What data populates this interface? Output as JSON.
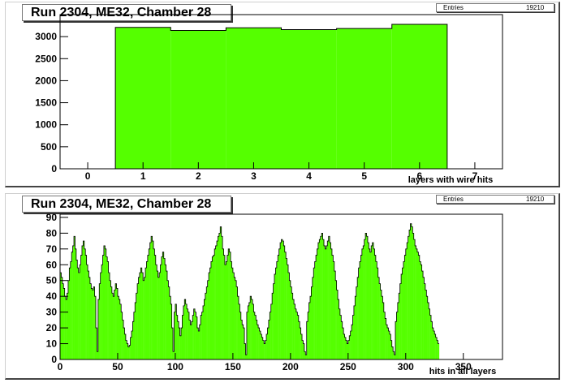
{
  "chart_data": [
    {
      "type": "bar",
      "title": "Run 2304, ME32, Chamber 28",
      "xlabel": "layers with wire hits",
      "ylabel": "",
      "stats": {
        "label": "Entries",
        "value": "19210"
      },
      "xlim": [
        -0.5,
        7.5
      ],
      "ylim": [
        0,
        3500
      ],
      "xticks": [
        0,
        1,
        2,
        3,
        4,
        5,
        6,
        7
      ],
      "yticks": [
        0,
        500,
        1000,
        1500,
        2000,
        2500,
        3000
      ],
      "categories": [
        1,
        2,
        3,
        4,
        5,
        6
      ],
      "values": [
        3210,
        3140,
        3200,
        3160,
        3185,
        3280
      ],
      "fill": "#55ff00",
      "grid": false
    },
    {
      "type": "bar",
      "title": "Run 2304, ME32, Chamber 28",
      "xlabel": "hits in all layers",
      "ylabel": "",
      "stats": {
        "label": "Entries",
        "value": "19210"
      },
      "xlim": [
        0,
        384
      ],
      "ylim": [
        0,
        92
      ],
      "xticks": [
        0,
        50,
        100,
        150,
        200,
        250,
        300,
        350
      ],
      "yticks": [
        0,
        10,
        20,
        30,
        40,
        50,
        60,
        70,
        80,
        90
      ],
      "bin_width": 1,
      "fill": "#55ff00",
      "grid": false,
      "values": [
        55,
        52,
        48,
        45,
        40,
        38,
        42,
        50,
        58,
        62,
        68,
        72,
        78,
        70,
        63,
        58,
        55,
        60,
        66,
        72,
        75,
        70,
        66,
        60,
        56,
        52,
        48,
        45,
        44,
        46,
        40,
        20,
        5,
        38,
        48,
        55,
        60,
        66,
        72,
        70,
        65,
        62,
        55,
        50,
        46,
        42,
        40,
        44,
        48,
        45,
        40,
        38,
        35,
        30,
        25,
        20,
        16,
        12,
        10,
        8,
        9,
        14,
        18,
        24,
        30,
        36,
        42,
        48,
        52,
        55,
        58,
        55,
        50,
        52,
        58,
        62,
        66,
        70,
        74,
        78,
        75,
        70,
        66,
        60,
        56,
        52,
        55,
        60,
        65,
        68,
        64,
        60,
        56,
        50,
        46,
        40,
        35,
        20,
        5,
        30,
        35,
        28,
        24,
        20,
        15,
        20,
        28,
        34,
        38,
        35,
        32,
        30,
        25,
        22,
        24,
        28,
        32,
        30,
        27,
        20,
        18,
        22,
        28,
        30,
        34,
        38,
        42,
        46,
        50,
        55,
        58,
        62,
        65,
        66,
        70,
        72,
        75,
        78,
        80,
        84,
        78,
        70,
        66,
        60,
        62,
        66,
        70,
        68,
        62,
        58,
        55,
        52,
        50,
        46,
        40,
        35,
        30,
        25,
        22,
        20,
        10,
        3,
        30,
        34,
        36,
        40,
        38,
        35,
        30,
        28,
        25,
        22,
        20,
        18,
        16,
        14,
        12,
        10,
        12,
        16,
        20,
        25,
        30,
        35,
        42,
        48,
        54,
        58,
        62,
        66,
        70,
        74,
        76,
        75,
        72,
        68,
        64,
        60,
        55,
        50,
        46,
        42,
        38,
        35,
        32,
        30,
        28,
        24,
        20,
        16,
        12,
        10,
        5,
        3,
        24,
        30,
        36,
        40,
        46,
        52,
        58,
        62,
        66,
        70,
        74,
        76,
        78,
        80,
        76,
        72,
        70,
        72,
        75,
        78,
        74,
        70,
        66,
        62,
        56,
        50,
        44,
        38,
        32,
        28,
        24,
        20,
        16,
        14,
        12,
        10,
        12,
        15,
        18,
        22,
        28,
        34,
        40,
        46,
        52,
        58,
        62,
        66,
        70,
        72,
        76,
        80,
        78,
        74,
        70,
        68,
        72,
        74,
        70,
        66,
        62,
        58,
        52,
        48,
        44,
        40,
        36,
        30,
        26,
        22,
        20,
        18,
        16,
        12,
        8,
        5,
        3,
        24,
        30,
        36,
        42,
        48,
        54,
        58,
        62,
        66,
        70,
        74,
        78,
        82,
        86,
        84,
        80,
        76,
        72,
        70,
        68,
        66,
        62,
        60,
        56,
        52,
        48,
        44,
        40,
        36,
        32,
        28,
        24,
        20,
        18,
        16,
        14,
        12,
        10
      ]
    }
  ]
}
